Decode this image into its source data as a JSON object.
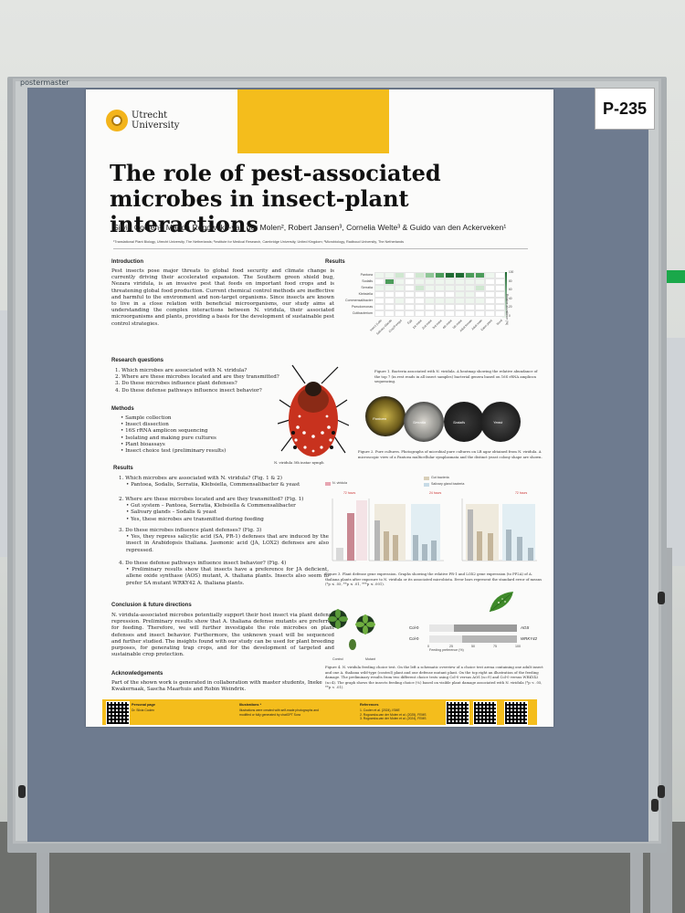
{
  "board": {
    "brand": "postermaster",
    "poster_number": "P-235"
  },
  "poster": {
    "university": [
      "Utrecht",
      "University"
    ],
    "title": "The role of pest-associated microbes in insect-plant interactions",
    "authors": "Silvia Coolen¹, Magda Rogowska-van der Molen², Robert Jansen³, Cornelia Welte³ & Guido van den Ackerveken¹",
    "affiliations": "¹Translational Plant Biology, Utrecht University, The Netherlands; ²Institute for Medical Research, Cambridge University, United Kingdom; ³Microbiology, Radboud University, The Netherlands",
    "introduction": {
      "heading": "Introduction",
      "text": "Pest insects pose major threats to global food security and climate change is currently driving their accelerated expansion. The Southern green shield bug, Nezara viridula, is an invasive pest that feeds on important food crops and is threatening global food production. Current chemical control methods are ineffective and harmful to the environment and non-target organisms. Since insects are known to live in a close relation with beneficial microorganisms, our study aims at understanding the complex interactions between N. viridula, their associated microorganisms and plants, providing a basis for the development of sustainable pest control strategies."
    },
    "research_questions": {
      "heading": "Research questions",
      "items": [
        "1. Which microbes are associated with N. viridula?",
        "2. Where are these microbes located and are they transmitted?",
        "3. Do these microbes influence plant defenses?",
        "4. Do these defense pathways influence insect behavior?"
      ]
    },
    "methods": {
      "heading": "Methods",
      "items": [
        "• Sample collection",
        "• Insect dissection",
        "• 16S rRNA amplicon sequencing",
        "• Isolating and making pure cultures",
        "• Plant bioassays",
        "• Insect choice test (preliminary results)"
      ],
      "bug_caption": "N. viridula 5th instar nymph"
    },
    "results_left": {
      "heading": "Results",
      "q1": "1. Which microbes are associated with N. viridula? (Fig. 1 & 2)",
      "q1_items": [
        "• Pantoea, Sodalis, Serratia, Klebsiella, Commensalibacter & yeast"
      ],
      "q2": "2. Where are these microbes located and are they transmitted? (Fig. 1)",
      "q2_items": [
        "• Gut system – Pantoea, Serratia, Klebsiella & Commensalibacter",
        "• Salivary glands – Sodalis & yeast",
        "• Yes, these microbes are transmitted during feeding"
      ],
      "q3": "3. Do these microbes influence plant defenses? (Fig. 3)",
      "q3_items": [
        "• Yes, they repress salicylic acid (SA, PR-1) defenses that are induced by the insect in Arabidopsis thaliana. Jasmonic acid (JA, LOX2) defenses are also repressed."
      ],
      "q4": "4. Do these defense pathways influence insect behavior? (Fig. 4)",
      "q4_items": [
        "• Preliminary results show that insects have a preference for JA deficient, allene oxide synthase (AOS) mutant, A. thaliana plants. Insects also seem to prefer SA mutant WRKY42 A. thaliana plants."
      ]
    },
    "conclusion": {
      "heading": "Conclusion & future directions",
      "text": "N. viridula-associated microbes potentially support their host insect via plant defense repression. Preliminary results show that A. thaliana defense mutants are preferred for feeding. Therefore, we will further investigate the role microbes on plant defenses and insect behavior. Furthermore, the unknown yeast will be sequenced and further studied. The insights found with our study can be used for plant breeding purposes, for generating trap crops, and for the development of targeted and sustainable crop protection."
    },
    "acknowledgements": {
      "heading": "Acknowledgements",
      "text": "Part of the shown work is generated in collaboration with master students, Ineke Kwakernaak, Sascha Maarhuis and Robin Weindrix."
    },
    "results_right": {
      "heading": "Results",
      "heatmap_rows": [
        "Pantoea",
        "Sodalis",
        "Serratia",
        "Klebsiella",
        "Commensalibacter",
        "Pseudomonas",
        "Cutibacterium"
      ],
      "heatmap_cols": [
        "Insect (Lab)",
        "Salivary Glands",
        "Crop/Foregut",
        "Egg",
        "1st instar",
        "2nd instar",
        "3rd instar",
        "4th instar",
        "5th instar",
        "Adult female",
        "Adult male",
        "Eaten plant",
        "Seed"
      ],
      "scale_ticks": [
        "100",
        "80",
        "60",
        "40",
        "20",
        "0"
      ],
      "scale_title": "Relative abundance (%)",
      "fig1_caption": "Figure 1. Bacteria associated with N. viridula. A heatmap showing the relative abundance of the top 7 (in rest reads in all insect samples) bacterial genera based on 16S rRNA amplicon sequencing.",
      "dish_labels": [
        "Pantoea",
        "Serratia",
        "Sodalis",
        "Yeast"
      ],
      "fig2_caption": "Figure 2. Pure cultures. Photographs of microbial pure cultures on LB agar obtained from N. viridula. A microscopic view of a Pantoea multicellular symplasmata and the distinct yeast colony shape are shown.",
      "legend": [
        "N. viridula",
        "Gut bacteria",
        "Salivary gland bacteria"
      ],
      "panel_tags": [
        "72 hours",
        "24 hours",
        "72 hours"
      ],
      "fig3_caption": "Figure 3. Plant defense gene expression. Graphs showing the relative PR-1 and LOX2 gene expression (to PP2A) of A. thaliana plants after exposure to N. viridula or its associated microbiota. Error bars represent the standard error of means (*p ≤ .05, **p ≤ .01, ***p ≤ .001).",
      "pref_rows": [
        {
          "left": "Col-0",
          "right": "AOS",
          "value": 0.72
        },
        {
          "left": "Col-0",
          "right": "WRKY42",
          "value": 0.62
        }
      ],
      "pref_axis": [
        "0",
        "25",
        "50",
        "75",
        "100"
      ],
      "pref_xlabel": "Feeding preference (%)",
      "choice_labels": [
        "Control",
        "Mutant"
      ],
      "fig4_caption": "Figure 4. N. viridula feeding choice test. On the left a schematic overview of a choice test arena containing one adult insect and one A. thaliana wild-type (control) plant and one defense mutant plant. On the top right an illustration of the feeding damage. The preliminary results from two different choice tests using Col-0 versus AOS (n=9) and Col-0 versus WRKY42 (n=4). The graph shows the insects feeding choice (%) based on visible plant damage associated with N. viridula (*p < .05, **p < .01)."
    },
    "footer": {
      "personal_title": "Personal page",
      "personal_name": "Dr. Silvia Coolen",
      "illus_title": "Illustrations *",
      "illus_text": "Illustrations were created with self-made photographs and modified or fully generated by chatGPT Sora",
      "ref_title": "References",
      "refs": [
        "1. Coolen et al. (2024), ISME",
        "2. Rogowska-van der Molen et al. (2025), FEMS",
        "3. Rogowska-van der Molen et al. (2024), FEMS"
      ]
    }
  },
  "colors": {
    "board": "#6e7b8f",
    "yellow": "#f4bd1c",
    "heat_dark": "#1f6b32",
    "bug_red": "#c8321e"
  }
}
